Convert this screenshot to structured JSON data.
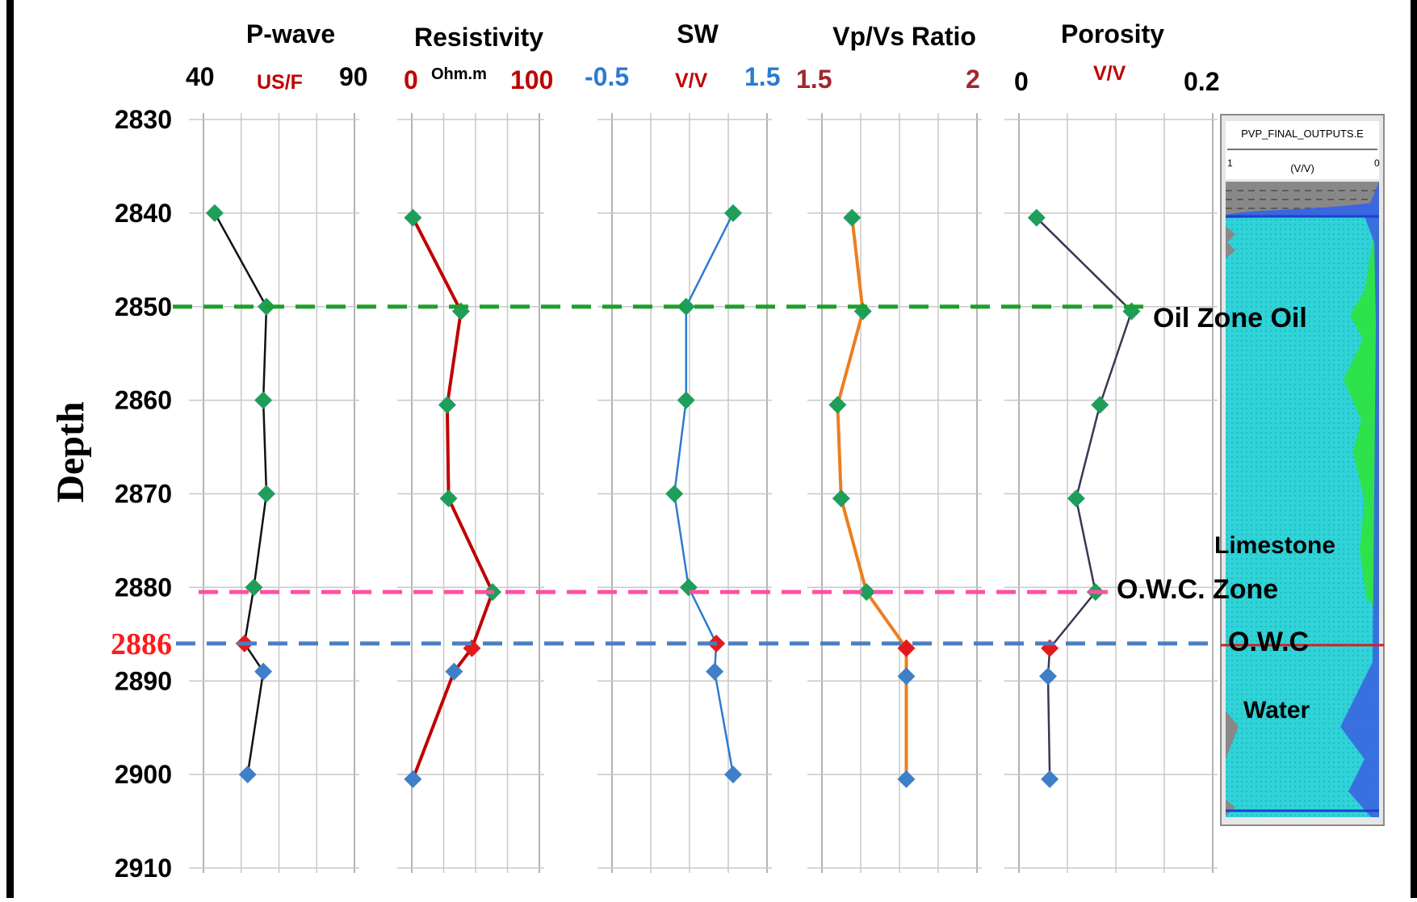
{
  "chart_data": {
    "type": "line",
    "depth_axis": {
      "label": "Depth",
      "ticks": [
        2830,
        2840,
        2850,
        2860,
        2870,
        2880,
        2886,
        2890,
        2900,
        2910
      ],
      "range": [
        2830,
        2910
      ],
      "highlight_tick": 2886,
      "highlight_color": "#ff1a1a"
    },
    "tracks": [
      {
        "key": "pwave",
        "title": "P-wave",
        "min_label": "40",
        "unit": "US/F",
        "max_label": "90",
        "range": [
          40,
          90
        ],
        "line_color": "#111111",
        "min_color": "#000000",
        "unit_color": "#c00000",
        "max_color": "#000000",
        "points": [
          [
            2840,
            40.5
          ],
          [
            2850,
            57
          ],
          [
            2860,
            56
          ],
          [
            2870,
            57
          ],
          [
            2880,
            53
          ],
          [
            2886,
            50
          ],
          [
            2889,
            56
          ],
          [
            2900,
            51
          ]
        ]
      },
      {
        "key": "resistivity",
        "title": "Resistivity",
        "min_label": "0",
        "unit": "Ohm.m",
        "max_label": "100",
        "range": [
          0,
          100
        ],
        "line_color": "#c00000",
        "min_color": "#c00000",
        "unit_color": "#000000",
        "max_color": "#c00000",
        "points": [
          [
            2840.5,
            2
          ],
          [
            2850.5,
            37
          ],
          [
            2860.5,
            27
          ],
          [
            2870.5,
            28
          ],
          [
            2880.5,
            60
          ],
          [
            2886.5,
            45
          ],
          [
            2889,
            32
          ],
          [
            2900.5,
            2
          ]
        ]
      },
      {
        "key": "sw",
        "title": "SW",
        "min_label": "-0.5",
        "unit": "V/V",
        "max_label": "1.5",
        "range": [
          -0.5,
          1.5
        ],
        "line_color": "#2b7bcf",
        "min_color": "#2b7bcf",
        "unit_color": "#c00000",
        "max_color": "#2b7bcf",
        "points": [
          [
            2840,
            1.0
          ],
          [
            2850,
            0.44
          ],
          [
            2860,
            0.44
          ],
          [
            2870,
            0.3
          ],
          [
            2880,
            0.47
          ],
          [
            2886,
            0.8
          ],
          [
            2889,
            0.78
          ],
          [
            2900,
            1.0
          ]
        ]
      },
      {
        "key": "vpvs",
        "title": "Vp/Vs Ratio",
        "min_label": "1.5",
        "unit": "",
        "max_label": "2",
        "range": [
          1.5,
          2.0
        ],
        "line_color": "#ee7d1e",
        "min_color": "#a0282d",
        "unit_color": "#000000",
        "max_color": "#a0282d",
        "points": [
          [
            2840.5,
            1.61
          ],
          [
            2850.5,
            1.64
          ],
          [
            2860.5,
            1.57
          ],
          [
            2870.5,
            1.58
          ],
          [
            2880.5,
            1.65
          ],
          [
            2886.5,
            1.76
          ],
          [
            2889.5,
            1.76
          ],
          [
            2900.5,
            1.76
          ]
        ]
      },
      {
        "key": "porosity",
        "title": "Porosity",
        "min_label": "0",
        "unit": "V/V",
        "max_label": "0.2",
        "range": [
          0,
          0.2
        ],
        "line_color": "#3d3555",
        "min_color": "#000000",
        "unit_color": "#c00000",
        "max_color": "#000000",
        "points": [
          [
            2840.5,
            0.02
          ],
          [
            2850.5,
            0.128
          ],
          [
            2860.5,
            0.092
          ],
          [
            2870.5,
            0.065
          ],
          [
            2880.5,
            0.087
          ],
          [
            2886.5,
            0.035
          ],
          [
            2889.5,
            0.033
          ],
          [
            2900.5,
            0.035
          ]
        ]
      }
    ],
    "markers": {
      "green": "#1e9e5a",
      "blue": "#3e7fc8",
      "red": "#e31a1c"
    },
    "zone_lines": [
      {
        "name": "Oil Zone",
        "depth": 2850,
        "color": "#1ea02a"
      },
      {
        "name": "O.W.C. Zone",
        "depth": 2880.5,
        "color": "#ff4fa3"
      },
      {
        "name": "O.W.C",
        "depth": 2886,
        "color": "#4a7fc1"
      }
    ],
    "annotations": [
      "Oil Zone Oil",
      "Limestone",
      "O.W.C. Zone",
      "O.W.C",
      "Water"
    ],
    "log_panel": {
      "title": "PVP_FINAL_OUTPUTS.E",
      "unit": "(V/V)",
      "left_label": "1",
      "right_label": "0",
      "water_color": "#2fd3d8",
      "oil_color": "#2ee24c",
      "hc_color": "#3a66e0",
      "gray_color": "#888888"
    }
  }
}
